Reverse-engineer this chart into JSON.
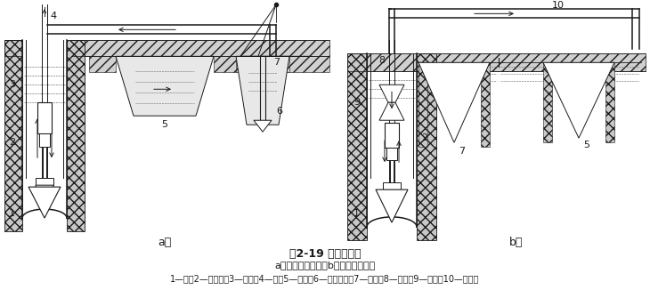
{
  "title_line1": "图2-19 环排渣方式",
  "title_line2": "a）正循环排渣法；b）反循环排渣法",
  "title_line3": "1—头；2—水电钻；3—水管；4—杆；5—淀池；6—水泥浆泵；7—浆池；8—渣管；9—石泵；10—渣胶管",
  "label_a": "a）",
  "label_b": "b）",
  "bg_color": "#ffffff",
  "text_color": "#000000",
  "fig_width": 7.3,
  "fig_height": 3.35,
  "dpi": 100
}
